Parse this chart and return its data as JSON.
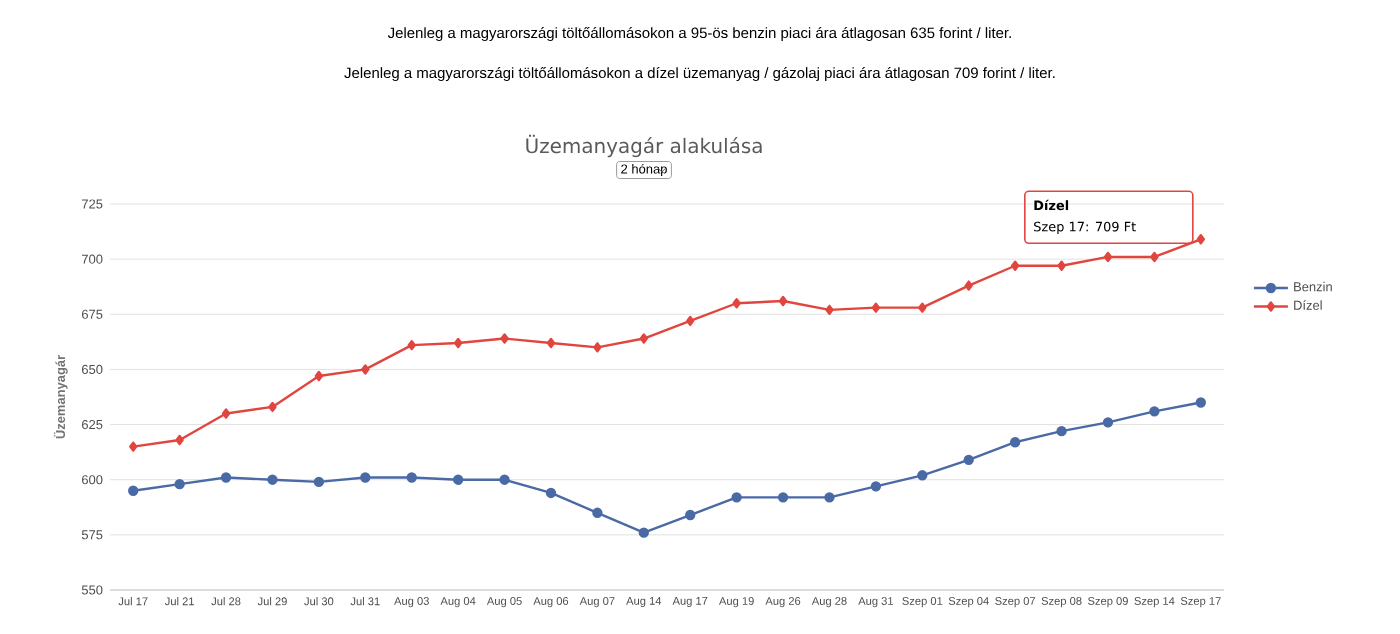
{
  "chart_data": {
    "type": "line",
    "title": "Üzemanyagár alakulása",
    "ylabel": "Üzemanyagár",
    "annotations": [
      "Jelenleg a magyarországi töltőállomásokon a 95-ös benzin piaci ára átlagosan 635 forint / liter.",
      "Jelenleg a magyarországi töltőállomásokon a dízel üzemanyag / gázolaj piaci ára átlagosan 709 forint / liter.",
      "2 hónap",
      "Dízel",
      "Szep 17: 709 Ft"
    ],
    "categories": [
      "Jul 17",
      "Jul 21",
      "Jul 28",
      "Jul 29",
      "Jul 30",
      "Jul 31",
      "Aug 03",
      "Aug 04",
      "Aug 05",
      "Aug 06",
      "Aug 07",
      "Aug 14",
      "Aug 17",
      "Aug 19",
      "Aug 26",
      "Aug 28",
      "Aug 31",
      "Szep 01",
      "Szep 04",
      "Szep 07",
      "Szep 08",
      "Szep 09",
      "Szep 14",
      "Szep 17"
    ],
    "series": [
      {
        "name": "Benzin",
        "color": "#4a6aa5",
        "marker": "circle",
        "values": [
          595,
          598,
          601,
          600,
          599,
          601,
          601,
          600,
          600,
          594,
          585,
          576,
          584,
          592,
          592,
          592,
          597,
          602,
          609,
          617,
          622,
          626,
          631,
          635
        ]
      },
      {
        "name": "Dízel",
        "color": "#e0463f",
        "marker": "diamond",
        "values": [
          615,
          618,
          630,
          633,
          647,
          650,
          661,
          662,
          664,
          662,
          660,
          664,
          672,
          680,
          681,
          677,
          678,
          678,
          688,
          697,
          697,
          701,
          701,
          709
        ]
      }
    ],
    "ylim": [
      550,
      725
    ],
    "yticks": [
      550,
      575,
      600,
      625,
      650,
      675,
      700,
      725
    ],
    "grid": "y",
    "legend": "right",
    "line_style": "solid"
  }
}
